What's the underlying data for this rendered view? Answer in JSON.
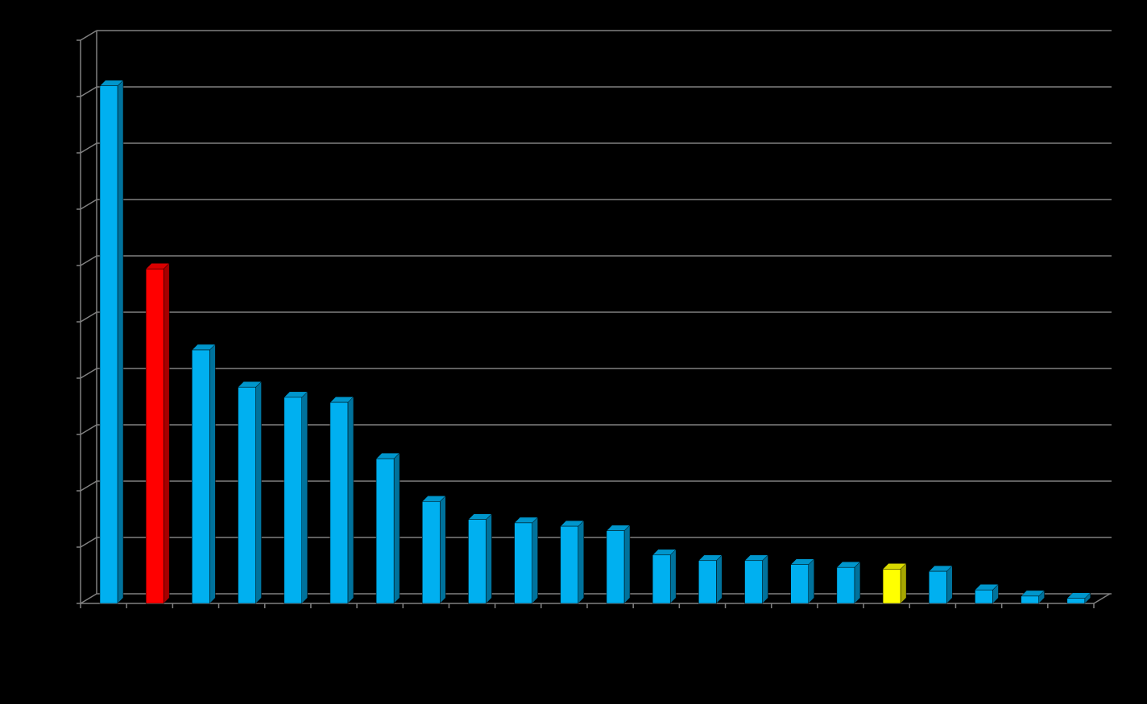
{
  "chart_data": {
    "type": "bar3d",
    "categories": [
      null,
      null,
      null,
      null,
      null,
      null,
      null,
      null,
      null,
      null,
      null,
      null,
      null,
      null,
      null,
      null,
      null,
      null,
      null,
      null,
      null,
      null
    ],
    "values": [
      9.19,
      5.94,
      4.5,
      3.84,
      3.66,
      3.57,
      2.57,
      1.81,
      1.49,
      1.43,
      1.37,
      1.29,
      0.86,
      0.76,
      0.76,
      0.69,
      0.64,
      0.61,
      0.57,
      0.24,
      0.13,
      0.09
    ],
    "colors": [
      "#00b0f0",
      "#ff0000",
      "#00b0f0",
      "#00b0f0",
      "#00b0f0",
      "#00b0f0",
      "#00b0f0",
      "#00b0f0",
      "#00b0f0",
      "#00b0f0",
      "#00b0f0",
      "#00b0f0",
      "#00b0f0",
      "#00b0f0",
      "#00b0f0",
      "#00b0f0",
      "#00b0f0",
      "#ffff00",
      "#00b0f0",
      "#00b0f0",
      "#00b0f0",
      "#00b0f0"
    ],
    "ylim": [
      0,
      10
    ],
    "yticks": [
      0,
      1,
      2,
      3,
      4,
      5,
      6,
      7,
      8,
      9,
      10
    ],
    "grid": true
  }
}
